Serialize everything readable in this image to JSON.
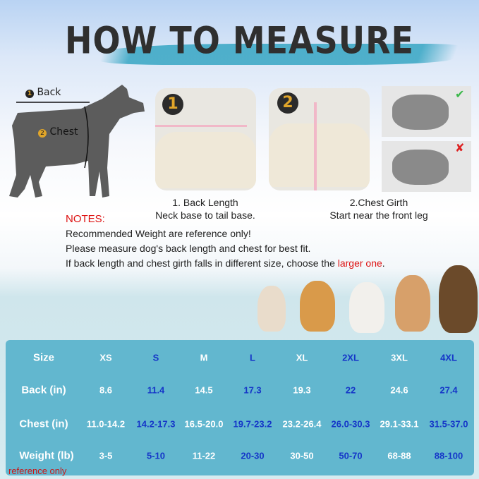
{
  "header": {
    "title": "HOW TO MEASURE"
  },
  "diagram": {
    "back_label": "Back",
    "chest_label": "Chest",
    "back_num": "1",
    "chest_num": "2"
  },
  "steps": [
    {
      "badge": "1",
      "title": "1. Back Length",
      "desc": "Neck base to tail base."
    },
    {
      "badge": "2",
      "title": "2.Chest Girth",
      "desc": "Start near the front leg"
    }
  ],
  "examples": {
    "correct_icon": "check-icon",
    "wrong_icon": "x-icon"
  },
  "notes": {
    "heading": "NOTES:",
    "line1": "Recommended Weight are reference only!",
    "line2": "Please measure dog's back length and chest for best fit.",
    "line3_prefix": "If back length and chest girth falls in different size, choose the ",
    "line3_highlight": "larger one",
    "line3_suffix": "."
  },
  "colors": {
    "table_bg": "#62b7cf",
    "alt_text": "#1536c8",
    "note_red": "#d11111"
  },
  "size_table": {
    "row_labels": [
      "Size",
      "Back  (in)",
      "Chest  (in)",
      "Weight  (lb)"
    ],
    "sizes": [
      "XS",
      "S",
      "M",
      "L",
      "XL",
      "2XL",
      "3XL",
      "4XL"
    ],
    "back": [
      "8.6",
      "11.4",
      "14.5",
      "17.3",
      "19.3",
      "22",
      "24.6",
      "27.4"
    ],
    "chest": [
      "11.0-14.2",
      "14.2-17.3",
      "16.5-20.0",
      "19.7-23.2",
      "23.2-26.4",
      "26.0-30.3",
      "29.1-33.1",
      "31.5-37.0"
    ],
    "weight": [
      "3-5",
      "5-10",
      "11-22",
      "20-30",
      "30-50",
      "50-70",
      "68-88",
      "88-100"
    ],
    "weight_note": "reference only"
  }
}
